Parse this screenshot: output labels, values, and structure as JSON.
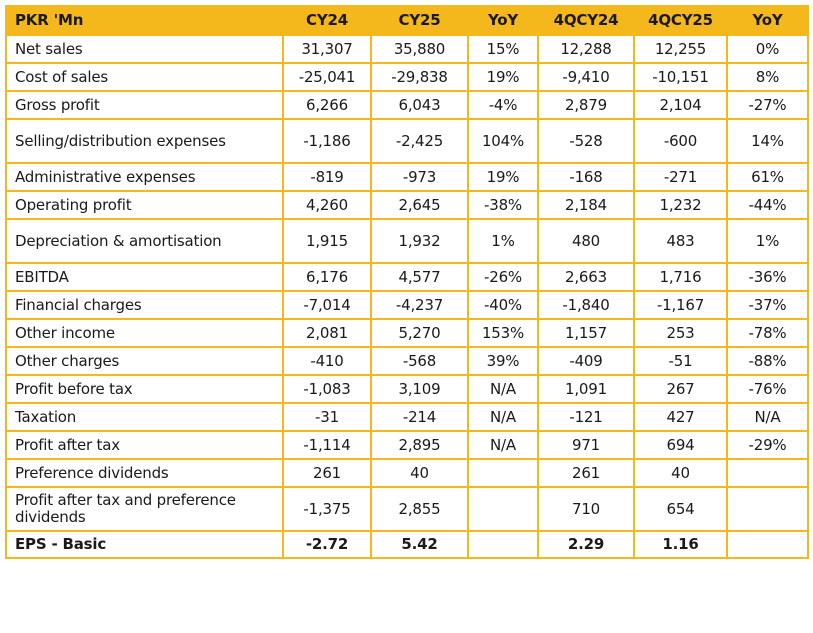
{
  "table": {
    "columns": [
      "PKR 'Mn",
      "CY24",
      "CY25",
      "YoY",
      "4QCY24",
      "4QCY25",
      "YoY"
    ],
    "rows": [
      {
        "label": "Net sales",
        "cy24": "31,307",
        "cy25": "35,880",
        "yoy_annual": "15%",
        "q4cy24": "12,288",
        "q4cy25": "12,255",
        "yoy_quarter": "0%"
      },
      {
        "label": "Cost of sales",
        "cy24": "-25,041",
        "cy25": "-29,838",
        "yoy_annual": "19%",
        "q4cy24": "-9,410",
        "q4cy25": "-10,151",
        "yoy_quarter": "8%"
      },
      {
        "label": "Gross profit",
        "cy24": "6,266",
        "cy25": "6,043",
        "yoy_annual": "-4%",
        "q4cy24": "2,879",
        "q4cy25": "2,104",
        "yoy_quarter": "-27%"
      },
      {
        "label": "Selling/distribution expenses",
        "cy24": "-1,186",
        "cy25": "-2,425",
        "yoy_annual": "104%",
        "q4cy24": "-528",
        "q4cy25": "-600",
        "yoy_quarter": "14%"
      },
      {
        "label": "Administrative expenses",
        "cy24": "-819",
        "cy25": "-973",
        "yoy_annual": "19%",
        "q4cy24": "-168",
        "q4cy25": "-271",
        "yoy_quarter": "61%"
      },
      {
        "label": "Operating profit",
        "cy24": "4,260",
        "cy25": "2,645",
        "yoy_annual": "-38%",
        "q4cy24": "2,184",
        "q4cy25": "1,232",
        "yoy_quarter": "-44%"
      },
      {
        "label": "Depreciation & amortisation",
        "cy24": "1,915",
        "cy25": "1,932",
        "yoy_annual": "1%",
        "q4cy24": "480",
        "q4cy25": "483",
        "yoy_quarter": "1%"
      },
      {
        "label": "EBITDA",
        "cy24": "6,176",
        "cy25": "4,577",
        "yoy_annual": "-26%",
        "q4cy24": "2,663",
        "q4cy25": "1,716",
        "yoy_quarter": "-36%"
      },
      {
        "label": "Financial charges",
        "cy24": "-7,014",
        "cy25": "-4,237",
        "yoy_annual": "-40%",
        "q4cy24": "-1,840",
        "q4cy25": "-1,167",
        "yoy_quarter": "-37%"
      },
      {
        "label": "Other income",
        "cy24": "2,081",
        "cy25": "5,270",
        "yoy_annual": "153%",
        "q4cy24": "1,157",
        "q4cy25": "253",
        "yoy_quarter": "-78%"
      },
      {
        "label": "Other charges",
        "cy24": "-410",
        "cy25": "-568",
        "yoy_annual": "39%",
        "q4cy24": "-409",
        "q4cy25": "-51",
        "yoy_quarter": "-88%"
      },
      {
        "label": "Profit before tax",
        "cy24": "-1,083",
        "cy25": "3,109",
        "yoy_annual": "N/A",
        "q4cy24": "1,091",
        "q4cy25": "267",
        "yoy_quarter": "-76%"
      },
      {
        "label": "Taxation",
        "cy24": "-31",
        "cy25": "-214",
        "yoy_annual": "N/A",
        "q4cy24": "-121",
        "q4cy25": "427",
        "yoy_quarter": "N/A"
      },
      {
        "label": "Profit after tax",
        "cy24": "-1,114",
        "cy25": "2,895",
        "yoy_annual": "N/A",
        "q4cy24": "971",
        "q4cy25": "694",
        "yoy_quarter": "-29%"
      },
      {
        "label": "Preference dividends",
        "cy24": "261",
        "cy25": "40",
        "yoy_annual": "",
        "q4cy24": "261",
        "q4cy25": "40",
        "yoy_quarter": ""
      },
      {
        "label": "Profit after tax and preference  dividends",
        "cy24": "-1,375",
        "cy25": "2,855",
        "yoy_annual": "",
        "q4cy24": "710",
        "q4cy25": "654",
        "yoy_quarter": ""
      },
      {
        "label": "EPS - Basic",
        "cy24": "-2.72",
        "cy25": "5.42",
        "yoy_annual": "",
        "q4cy24": "2.29",
        "q4cy25": "1.16",
        "yoy_quarter": ""
      }
    ]
  },
  "colors": {
    "accent": "#f4b71c",
    "text": "#1a1a1a",
    "background": "#ffffff"
  }
}
